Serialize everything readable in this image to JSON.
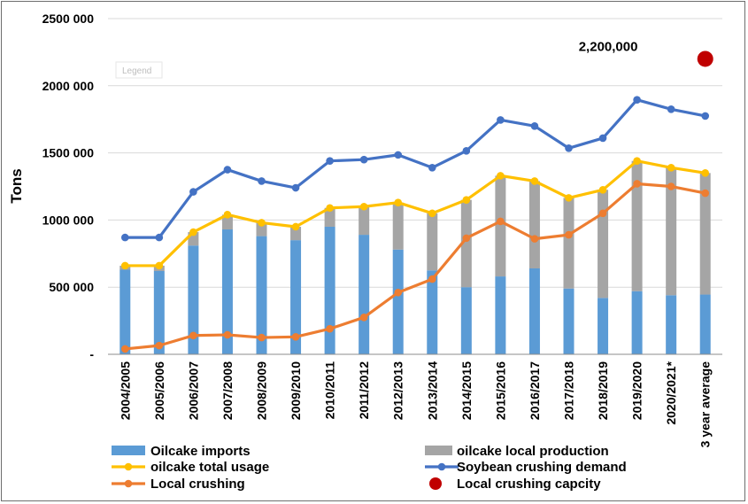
{
  "chart_data": {
    "type": "bar",
    "title": "",
    "ylabel": "Tons",
    "xlabel": "",
    "ylim": [
      0,
      2500000
    ],
    "grid": true,
    "legend_position": "bottom",
    "yticks": [
      {
        "value": 0,
        "label": "-"
      },
      {
        "value": 500000,
        "label": "500 000"
      },
      {
        "value": 1000000,
        "label": "1000 000"
      },
      {
        "value": 1500000,
        "label": "1500 000"
      },
      {
        "value": 2000000,
        "label": "2000 000"
      },
      {
        "value": 2500000,
        "label": "2500 000"
      }
    ],
    "categories": [
      "2004/2005",
      "2005/2006",
      "2006/2007",
      "2007/2008",
      "2008/2009",
      "2009/2010",
      "2010/2011",
      "2011/2012",
      "2012/2013",
      "2013/2014",
      "2014/2015",
      "2015/2016",
      "2016/2017",
      "2017/2018",
      "2018/2019",
      "2019/2020",
      "2020/2021*",
      "3 year average"
    ],
    "series": [
      {
        "name": "Oilcake imports",
        "kind": "bar",
        "stack": "usage",
        "color": "#5b9bd5",
        "values": [
          630000,
          620000,
          810000,
          930000,
          880000,
          850000,
          950000,
          890000,
          780000,
          625000,
          500000,
          580000,
          640000,
          490000,
          420000,
          470000,
          440000,
          445000
        ]
      },
      {
        "name": "oilcake local production",
        "kind": "bar",
        "stack": "usage",
        "color": "#a5a5a5",
        "values": [
          30000,
          40000,
          100000,
          110000,
          100000,
          100000,
          140000,
          210000,
          350000,
          425000,
          650000,
          750000,
          650000,
          675000,
          805000,
          970000,
          950000,
          905000
        ]
      },
      {
        "name": "oilcake total usage",
        "kind": "line",
        "color": "#ffc000",
        "values": [
          660000,
          660000,
          910000,
          1040000,
          980000,
          950000,
          1090000,
          1100000,
          1130000,
          1050000,
          1150000,
          1330000,
          1290000,
          1165000,
          1225000,
          1440000,
          1390000,
          1350000
        ]
      },
      {
        "name": "Soybean crushing demand",
        "kind": "line",
        "color": "#4472c4",
        "values": [
          870000,
          870000,
          1210000,
          1375000,
          1290000,
          1240000,
          1440000,
          1450000,
          1485000,
          1390000,
          1515000,
          1745000,
          1700000,
          1535000,
          1610000,
          1895000,
          1825000,
          1775000
        ]
      },
      {
        "name": "Local crushing",
        "kind": "line",
        "color": "#ed7d31",
        "values": [
          40000,
          65000,
          140000,
          145000,
          125000,
          130000,
          190000,
          275000,
          460000,
          560000,
          865000,
          990000,
          860000,
          890000,
          1050000,
          1270000,
          1250000,
          1200000
        ]
      },
      {
        "name": "Local crushing capcity",
        "kind": "point",
        "color": "#c00000",
        "x": "3 year average",
        "value": 2200000
      }
    ],
    "annotations": [
      {
        "text": "2,200,000",
        "x": "3 year average",
        "y": 2200000
      }
    ],
    "legend_stub_text": "Legend"
  }
}
